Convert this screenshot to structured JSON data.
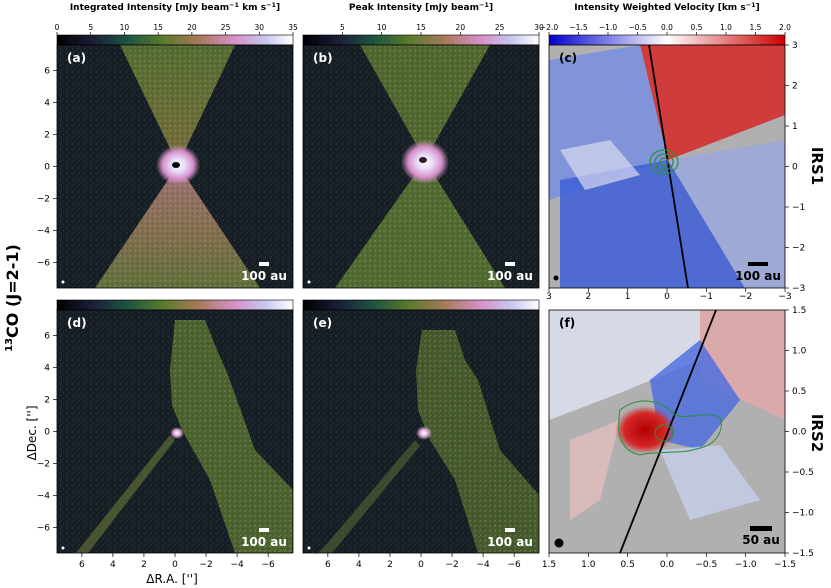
{
  "figure": {
    "row_labels": [
      "IRS1",
      "IRS2"
    ],
    "molecule_label_sup": "13",
    "molecule_label_main": "CO (J=2-1)",
    "xlabel": "ΔR.A. ['']",
    "ylabel": "ΔDec. ['']",
    "colors": {
      "background_dark": "#161d24",
      "green_emission": "#6f8a3b",
      "pink_core": "#e8b6d8",
      "vel_red": "#d62728",
      "vel_blue": "#3e5fd8",
      "masked_grey": "#b0b0b0",
      "contour": "#2a8f3a"
    }
  },
  "colorbars": [
    {
      "title": "Integrated Intensity [mJy beam$^{-1}$ km s$^{-1}$]",
      "title_main": "Integrated Intensity [mJy beam",
      "title_sup1": "−1",
      "title_mid": " km s",
      "title_sup2": "−1",
      "title_end": "]",
      "ticks": [
        "0",
        "5",
        "10",
        "15",
        "20",
        "25",
        "30",
        "35"
      ],
      "cmap": "cubehelix",
      "range": [
        0,
        35
      ]
    },
    {
      "title_main": "Peak Intensity [mJy beam",
      "title_sup1": "−1",
      "title_end": "]",
      "ticks": [
        "5",
        "10",
        "15",
        "20",
        "25",
        "30"
      ],
      "cmap": "cubehelix",
      "range": [
        0,
        30
      ]
    },
    {
      "title_main": "Intensity Weighted Velocity [km s",
      "title_sup1": "−1",
      "title_end": "]",
      "ticks": [
        "−2.0",
        "−1.5",
        "−1.0",
        "−0.5",
        "0.0",
        "0.5",
        "1.0",
        "1.5",
        "2.0"
      ],
      "cmap": "bwr",
      "range": [
        -2.0,
        2.0
      ]
    }
  ],
  "panels": [
    {
      "id": "a",
      "label": "(a)",
      "scale_bar": "100 au",
      "source": "IRS1",
      "quantity": "integrated"
    },
    {
      "id": "b",
      "label": "(b)",
      "scale_bar": "100 au",
      "source": "IRS1",
      "quantity": "peak"
    },
    {
      "id": "c",
      "label": "(c)",
      "scale_bar": "100 au",
      "source": "IRS1",
      "quantity": "velocity"
    },
    {
      "id": "d",
      "label": "(d)",
      "scale_bar": "100 au",
      "source": "IRS2",
      "quantity": "integrated"
    },
    {
      "id": "e",
      "label": "(e)",
      "scale_bar": "100 au",
      "source": "IRS2",
      "quantity": "peak"
    },
    {
      "id": "f",
      "label": "(f)",
      "scale_bar": "50 au",
      "source": "IRS2",
      "quantity": "velocity"
    }
  ],
  "axes": {
    "left_y_ticks": [
      "6",
      "4",
      "2",
      "0",
      "−2",
      "−4",
      "−6"
    ],
    "left_y_values": [
      6,
      4,
      2,
      0,
      -2,
      -4,
      -6
    ],
    "left_y_range": [
      -7.6,
      7.6
    ],
    "x_ticks_labels": [
      "6",
      "4",
      "2",
      "0",
      "−2",
      "−4",
      "−6"
    ],
    "x_ticks_values": [
      6,
      4,
      2,
      0,
      -2,
      -4,
      -6
    ],
    "x_range": [
      7.6,
      -7.6
    ],
    "c_right_ticks": [
      "3",
      "2",
      "1",
      "0",
      "−1",
      "−2",
      "−3"
    ],
    "c_right_values": [
      3,
      2,
      1,
      0,
      -1,
      -2,
      -3
    ],
    "c_range": [
      -3,
      3
    ],
    "c_bottom_ticks": [
      "3",
      "2",
      "1",
      "0",
      "−1",
      "−2",
      "−3"
    ],
    "f_right_ticks": [
      "1.5",
      "1.0",
      "0.5",
      "0.0",
      "−0.5",
      "−1.0",
      "−1.5"
    ],
    "f_right_values": [
      1.5,
      1.0,
      0.5,
      0.0,
      -0.5,
      -1.0,
      -1.5
    ],
    "f_range": [
      -1.5,
      1.5
    ],
    "f_bottom_ticks": [
      "1.5",
      "1.0",
      "0.5",
      "0.0",
      "−0.5",
      "−1.0",
      "−1.5"
    ]
  },
  "chart_data": [
    {
      "type": "heatmap",
      "panel": "(a)",
      "title": "Integrated Intensity [mJy beam−1 km s−1]",
      "xlabel": "ΔR.A. ['']",
      "ylabel": "ΔDec. ['']",
      "xlim": [
        7.6,
        -7.6
      ],
      "ylim": [
        -7.6,
        7.6
      ],
      "colorbar_range": [
        0,
        35
      ]
    },
    {
      "type": "heatmap",
      "panel": "(b)",
      "title": "Peak Intensity [mJy beam−1]",
      "xlim": [
        7.6,
        -7.6
      ],
      "ylim": [
        -7.6,
        7.6
      ],
      "colorbar_range": [
        0,
        30
      ]
    },
    {
      "type": "heatmap",
      "panel": "(c)",
      "title": "Intensity Weighted Velocity [km s−1]",
      "xlim": [
        3,
        -3
      ],
      "ylim": [
        -3,
        3
      ],
      "colorbar_range": [
        -2.0,
        2.0
      ]
    },
    {
      "type": "heatmap",
      "panel": "(d)",
      "xlabel": "ΔR.A. ['']",
      "ylabel": "ΔDec. ['']",
      "xlim": [
        7.6,
        -7.6
      ],
      "ylim": [
        -7.6,
        7.6
      ]
    },
    {
      "type": "heatmap",
      "panel": "(e)",
      "xlim": [
        7.6,
        -7.6
      ],
      "ylim": [
        -7.6,
        7.6
      ]
    },
    {
      "type": "heatmap",
      "panel": "(f)",
      "xlim": [
        1.5,
        -1.5
      ],
      "ylim": [
        -1.5,
        1.5
      ],
      "colorbar_range": [
        -1.5,
        1.5
      ]
    }
  ]
}
